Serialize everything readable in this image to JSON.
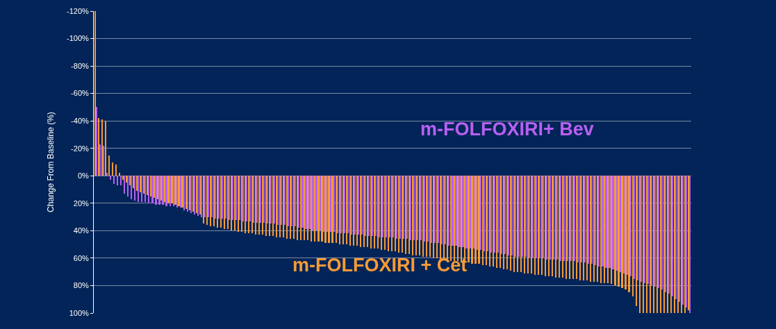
{
  "chart_data": {
    "type": "bar",
    "ylabel": "Change From Baseline (%)",
    "categories": [
      null,
      null,
      null,
      null,
      null,
      null,
      null,
      null,
      null,
      null,
      null,
      null,
      null,
      null,
      null,
      null,
      null,
      null,
      null,
      null,
      null,
      null,
      null,
      null,
      null,
      null,
      null,
      null,
      null,
      null,
      null,
      null,
      null,
      null,
      null,
      null,
      null,
      null,
      null,
      null,
      null,
      null,
      null,
      null,
      null,
      null,
      null,
      null,
      null,
      null,
      null,
      null,
      null,
      null,
      null,
      null,
      null,
      null,
      null,
      null,
      null,
      null,
      null,
      null,
      null,
      null,
      null,
      null,
      null,
      null,
      null,
      null,
      null,
      null,
      null,
      null,
      null,
      null,
      null,
      null,
      null,
      null,
      null,
      null,
      null,
      null,
      null,
      null,
      null,
      null,
      null,
      null,
      null,
      null,
      null,
      null,
      null,
      null,
      null,
      null,
      null,
      null,
      null,
      null,
      null,
      null,
      null,
      null,
      null,
      null,
      null,
      null,
      null,
      null,
      null,
      null,
      null,
      null,
      null,
      null,
      null,
      null,
      null,
      null,
      null,
      null,
      null,
      null,
      null,
      null,
      null,
      null,
      null,
      null,
      null,
      null,
      null,
      null,
      null,
      null,
      null,
      null,
      null,
      null,
      null,
      null,
      null,
      null,
      null,
      null,
      null,
      null,
      null,
      null,
      null,
      null,
      null,
      null,
      null,
      null,
      null,
      null,
      null,
      null,
      null,
      null,
      null,
      null,
      null,
      null,
      null
    ],
    "series": [
      {
        "name": "m-FOLFOXIRI + Cet",
        "color": "#f59b35",
        "values": [
          -120,
          -42,
          -41,
          -40,
          -15,
          -10,
          -8,
          -2,
          3,
          5,
          7,
          9,
          11,
          12,
          13,
          14,
          15,
          16,
          17,
          18,
          19,
          20,
          20,
          21,
          22,
          23,
          24,
          25,
          26,
          27,
          28,
          35,
          36,
          37,
          37,
          38,
          38,
          39,
          39,
          40,
          40,
          41,
          41,
          42,
          42,
          42,
          43,
          43,
          43,
          44,
          44,
          44,
          45,
          45,
          45,
          46,
          46,
          46,
          47,
          47,
          47,
          47,
          48,
          48,
          48,
          48,
          49,
          49,
          49,
          49,
          50,
          50,
          50,
          51,
          51,
          51,
          52,
          52,
          52,
          53,
          53,
          53,
          54,
          54,
          55,
          55,
          55,
          56,
          56,
          57,
          57,
          58,
          58,
          58,
          59,
          59,
          59,
          60,
          60,
          61,
          61,
          61,
          62,
          62,
          62,
          63,
          63,
          63,
          64,
          64,
          64,
          65,
          65,
          66,
          66,
          67,
          67,
          68,
          68,
          69,
          70,
          70,
          70,
          71,
          71,
          71,
          72,
          72,
          72,
          73,
          73,
          73,
          74,
          74,
          74,
          75,
          75,
          75,
          75,
          76,
          76,
          76,
          77,
          77,
          77,
          78,
          78,
          78,
          79,
          80,
          81,
          82,
          83,
          85,
          88,
          95,
          100,
          100,
          100,
          100,
          100,
          100,
          100,
          100,
          100,
          100,
          100,
          100,
          100,
          100,
          98
        ]
      },
      {
        "name": "m-FOLFOXIRI+ Bev",
        "color": "#b760f0",
        "values": [
          -50,
          -23,
          -22,
          -2,
          3,
          6,
          7,
          7,
          13,
          15,
          17,
          18,
          19,
          19,
          19,
          20,
          20,
          21,
          21,
          21,
          22,
          22,
          22,
          23,
          23,
          25,
          26,
          27,
          28,
          29,
          30,
          30,
          30,
          30,
          31,
          31,
          31,
          31,
          32,
          32,
          32,
          32,
          33,
          33,
          33,
          34,
          34,
          34,
          34,
          35,
          35,
          35,
          36,
          36,
          36,
          37,
          37,
          37,
          38,
          38,
          39,
          39,
          40,
          40,
          40,
          41,
          41,
          41,
          41,
          42,
          42,
          42,
          42,
          43,
          43,
          43,
          43,
          44,
          44,
          44,
          44,
          45,
          45,
          45,
          45,
          45,
          46,
          46,
          46,
          46,
          47,
          47,
          47,
          47,
          48,
          48,
          49,
          49,
          49,
          50,
          50,
          51,
          51,
          51,
          52,
          52,
          53,
          53,
          53,
          54,
          54,
          55,
          55,
          56,
          56,
          56,
          57,
          57,
          58,
          58,
          59,
          59,
          59,
          59,
          60,
          60,
          60,
          60,
          60,
          61,
          61,
          61,
          61,
          62,
          62,
          62,
          62,
          62,
          63,
          63,
          63,
          64,
          64,
          65,
          66,
          66,
          67,
          67,
          68,
          69,
          70,
          71,
          72,
          73,
          75,
          76,
          77,
          78,
          79,
          80,
          81,
          82,
          83,
          85,
          86,
          88,
          90,
          92,
          94,
          96,
          100
        ]
      }
    ],
    "ylim": [
      100,
      -120
    ],
    "yticks": [
      {
        "value": -120,
        "label": "-120%"
      },
      {
        "value": -100,
        "label": "-100%"
      },
      {
        "value": -80,
        "label": "-80%"
      },
      {
        "value": -60,
        "label": "-60%"
      },
      {
        "value": -40,
        "label": "-40%"
      },
      {
        "value": -20,
        "label": "-20%"
      },
      {
        "value": 0,
        "label": "0%"
      },
      {
        "value": 20,
        "label": "20%"
      },
      {
        "value": 40,
        "label": "40%"
      },
      {
        "value": 60,
        "label": "60%"
      },
      {
        "value": 80,
        "label": "80%"
      },
      {
        "value": 100,
        "label": "100%"
      }
    ],
    "grid": "y",
    "tick_labels": "y"
  }
}
